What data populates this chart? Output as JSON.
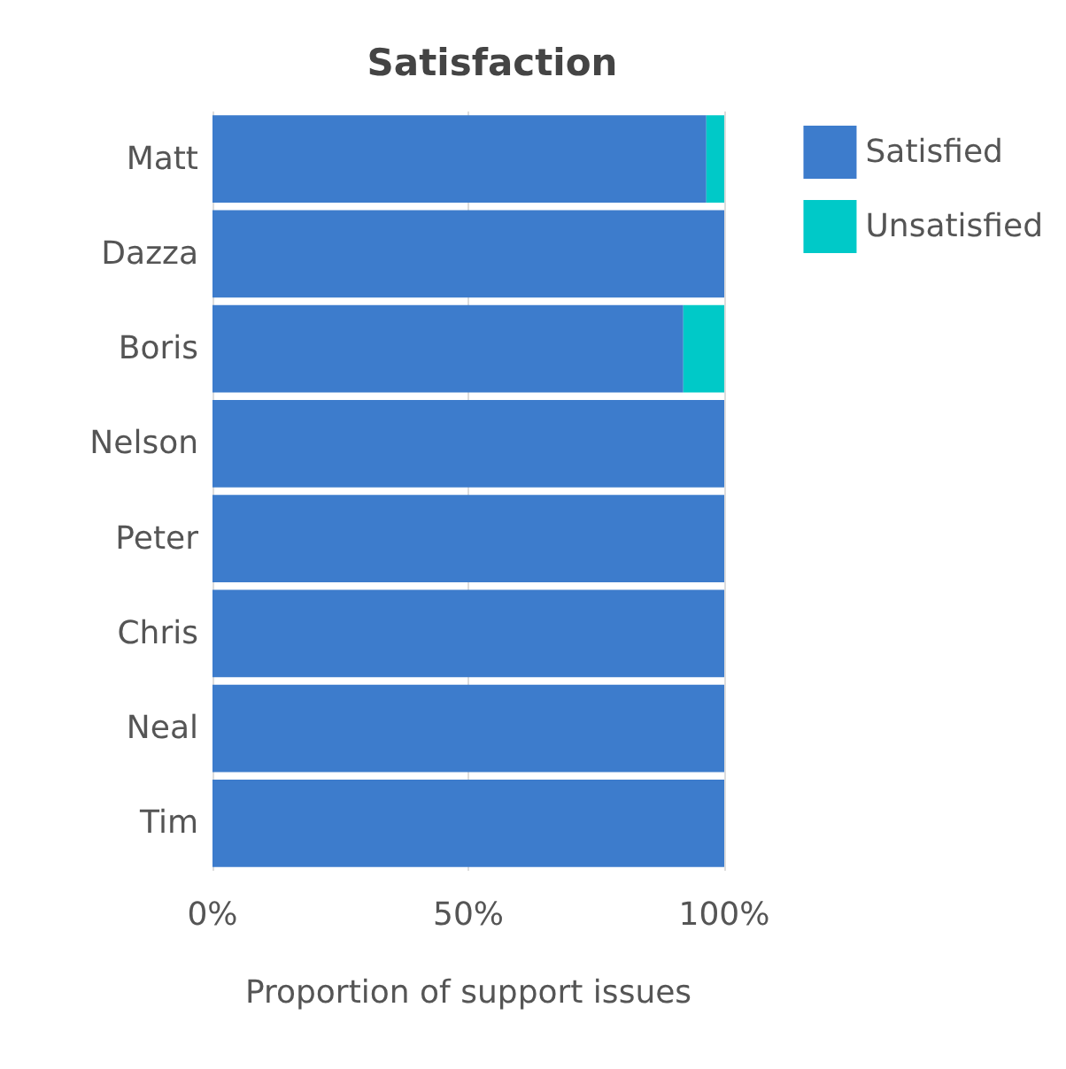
{
  "chart_data": {
    "type": "bar",
    "orientation": "horizontal",
    "stacked": true,
    "title": "Satisfaction",
    "xlabel": "Proportion of support issues",
    "categories": [
      "Matt",
      "Dazza",
      "Boris",
      "Nelson",
      "Peter",
      "Chris",
      "Neal",
      "Tim"
    ],
    "series": [
      {
        "name": "Satisfied",
        "color": "#3d7ccc",
        "values": [
          96.5,
          100,
          92,
          100,
          100,
          100,
          100,
          100
        ]
      },
      {
        "name": "Unsatisfied",
        "color": "#00c9c8",
        "values": [
          3.5,
          0,
          8,
          0,
          0,
          0,
          0,
          0
        ]
      }
    ],
    "xlim": [
      0,
      100
    ],
    "xticks": [
      {
        "value": 0,
        "label": "0%"
      },
      {
        "value": 50,
        "label": "50%"
      },
      {
        "value": 100,
        "label": "100%"
      }
    ],
    "grid": "x",
    "legend": "top right"
  }
}
